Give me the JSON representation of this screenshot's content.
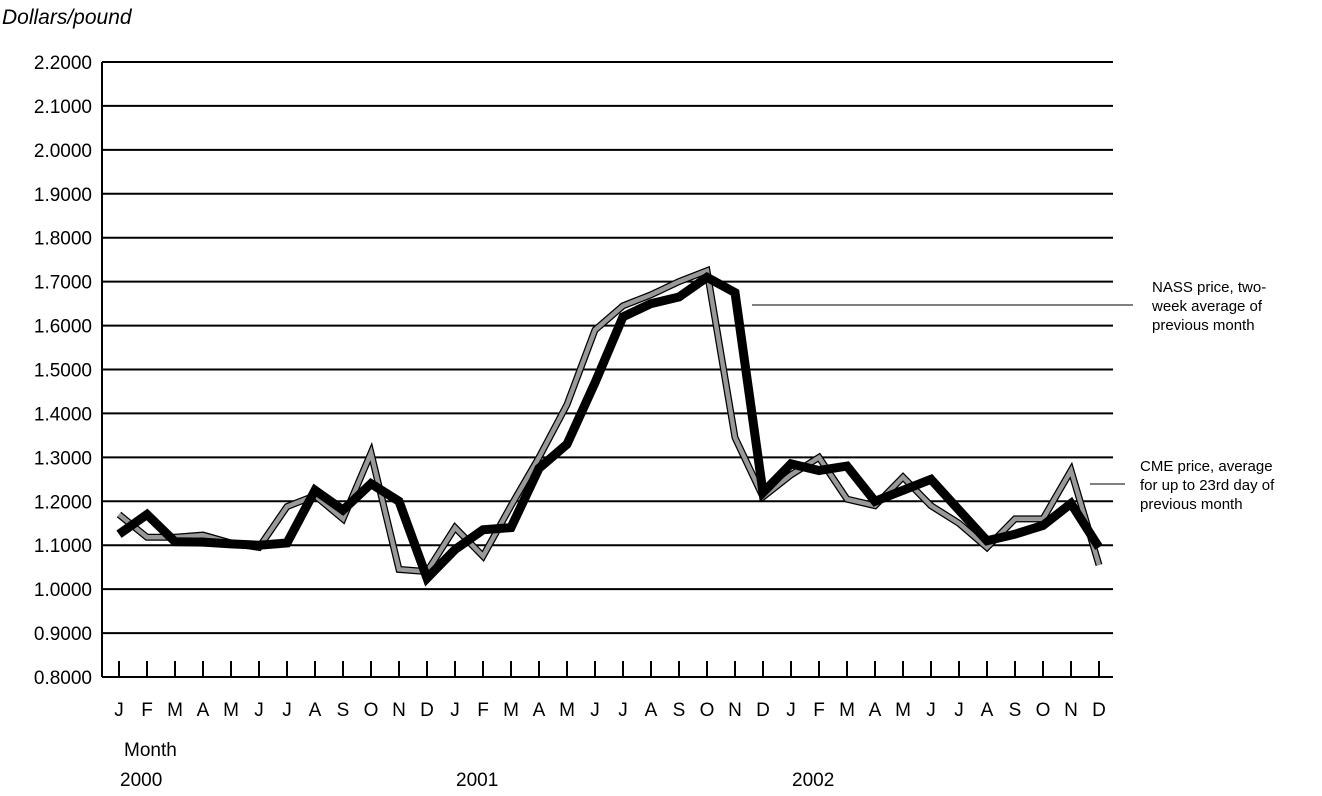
{
  "chart_data": {
    "type": "line",
    "title": "",
    "ylabel": "Dollars/pound",
    "xlabel": "Month",
    "ylim": [
      0.8,
      2.2
    ],
    "yticks": [
      "0.8000",
      "0.9000",
      "1.0000",
      "1.1000",
      "1.2000",
      "1.3000",
      "1.4000",
      "1.5000",
      "1.6000",
      "1.7000",
      "1.8000",
      "1.9000",
      "2.0000",
      "2.1000",
      "2.2000"
    ],
    "grid": true,
    "categories": [
      "J",
      "F",
      "M",
      "A",
      "M",
      "J",
      "J",
      "A",
      "S",
      "O",
      "N",
      "D",
      "J",
      "F",
      "M",
      "A",
      "M",
      "J",
      "J",
      "A",
      "S",
      "O",
      "N",
      "D",
      "J",
      "F",
      "M",
      "A",
      "M",
      "J",
      "J",
      "A",
      "S",
      "O",
      "N",
      "D"
    ],
    "years": [
      "2000",
      "2001",
      "2002"
    ],
    "series": [
      {
        "name": "NASS price, two-week average of previous month",
        "color": "#000000",
        "values": [
          1.125,
          1.17,
          1.108,
          1.107,
          1.103,
          1.1,
          1.105,
          1.225,
          1.18,
          1.24,
          1.2,
          1.025,
          1.09,
          1.135,
          1.14,
          1.275,
          1.33,
          1.47,
          1.62,
          1.65,
          1.665,
          1.71,
          1.675,
          1.22,
          1.285,
          1.27,
          1.28,
          1.2,
          1.225,
          1.25,
          1.18,
          1.11,
          1.125,
          1.145,
          1.195,
          1.095
        ]
      },
      {
        "name": "CME price, average for up to 23rd day of previous month",
        "color": "#999999",
        "values": [
          1.17,
          1.118,
          1.118,
          1.123,
          1.105,
          1.095,
          1.188,
          1.213,
          1.16,
          1.31,
          1.045,
          1.04,
          1.14,
          1.075,
          1.19,
          1.3,
          1.42,
          1.59,
          1.645,
          1.67,
          1.7,
          1.725,
          1.345,
          1.21,
          1.26,
          1.3,
          1.205,
          1.19,
          1.255,
          1.19,
          1.15,
          1.095,
          1.16,
          1.16,
          1.27,
          1.055
        ]
      }
    ],
    "annotations": [
      {
        "lines": [
          "NASS price, two-",
          "week average of",
          "previous month"
        ]
      },
      {
        "lines": [
          "CME price, average",
          "for up to 23rd day of",
          "previous  month"
        ]
      }
    ]
  }
}
